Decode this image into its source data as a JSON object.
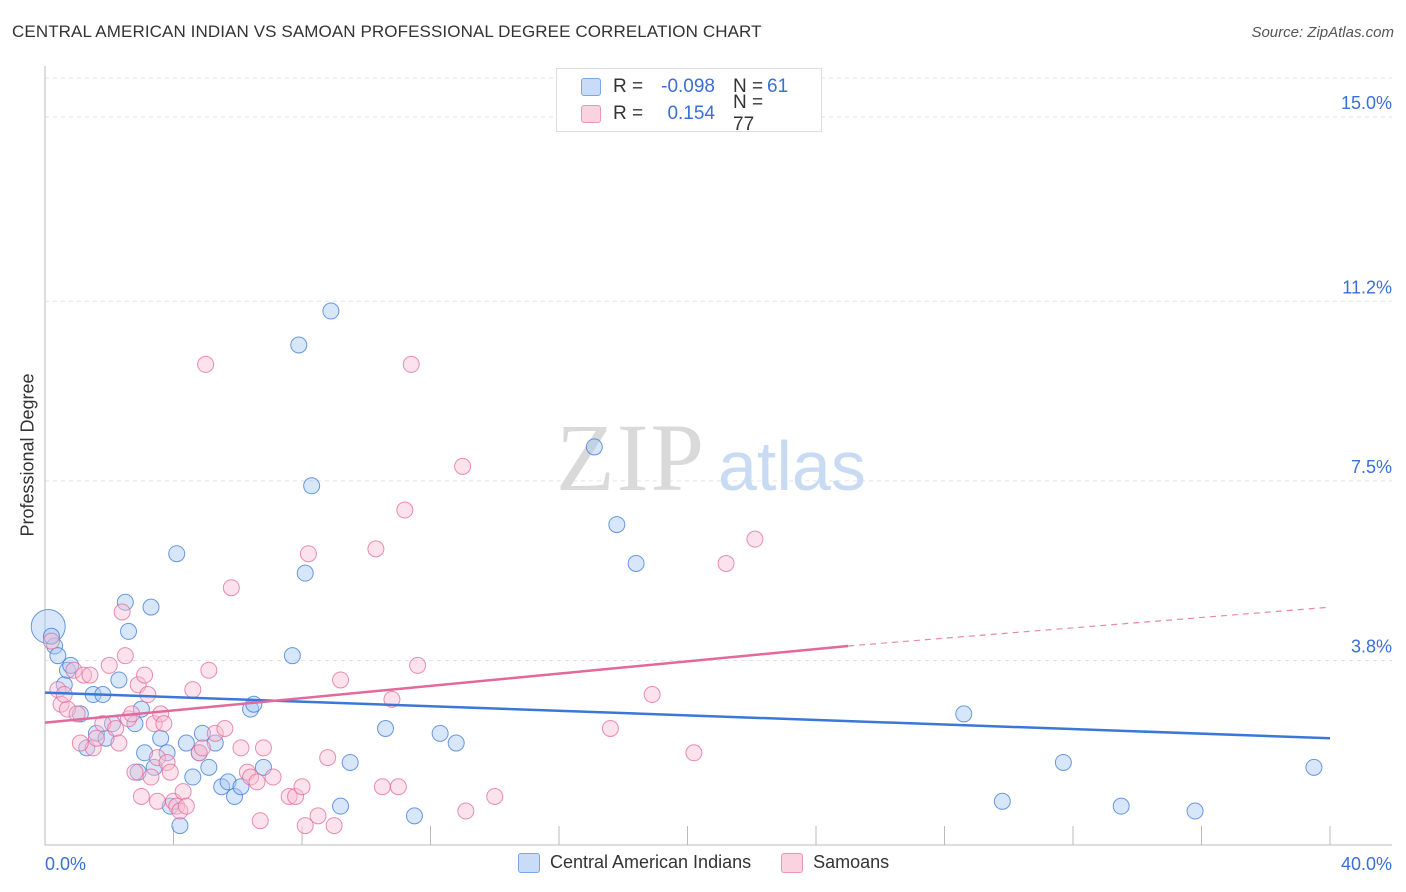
{
  "header": {
    "title": "CENTRAL AMERICAN INDIAN VS SAMOAN PROFESSIONAL DEGREE CORRELATION CHART",
    "source": "Source: ZipAtlas.com"
  },
  "watermark": {
    "zip": "ZIP",
    "atlas": "atlas"
  },
  "legend": {
    "rows": [
      {
        "r_label": "R =",
        "r_value": "-0.098",
        "n_label": "N =",
        "n_value": "61",
        "color": "#8ab4f0"
      },
      {
        "r_label": "R =",
        "r_value": "0.154",
        "n_label": "N = 77",
        "n_value": "",
        "color": "#f4a3bd"
      }
    ]
  },
  "bottom_legend": {
    "items": [
      {
        "label": "Central American Indians",
        "color": "#8ab4f0"
      },
      {
        "label": "Samoans",
        "color": "#f4a3bd"
      }
    ]
  },
  "chart_data": {
    "type": "scatter",
    "title": "CENTRAL AMERICAN INDIAN VS SAMOAN PROFESSIONAL DEGREE CORRELATION CHART",
    "xlabel": "",
    "ylabel": "Professional Degree",
    "xlim": [
      0,
      40
    ],
    "ylim": [
      0,
      15.8
    ],
    "x_tick_labels": [
      "0.0%",
      "40.0%"
    ],
    "y_ticks": [
      3.8,
      7.5,
      11.2,
      15.0
    ],
    "y_tick_labels": [
      "3.8%",
      "7.5%",
      "11.2%",
      "15.0%"
    ],
    "grid": true,
    "series": [
      {
        "name": "Central American Indians",
        "color": "#3a78d8",
        "fill": "#a9c8f3",
        "trend": {
          "x0": 0,
          "y0": 3.14,
          "x1": 40,
          "y1": 2.2
        },
        "points": [
          [
            0.1,
            4.5
          ],
          [
            0.3,
            4.1
          ],
          [
            0.4,
            3.9
          ],
          [
            0.6,
            3.3
          ],
          [
            0.7,
            3.6
          ],
          [
            0.8,
            3.7
          ],
          [
            1.1,
            2.7
          ],
          [
            1.3,
            2.0
          ],
          [
            1.5,
            3.1
          ],
          [
            1.6,
            2.3
          ],
          [
            1.8,
            3.1
          ],
          [
            1.9,
            2.2
          ],
          [
            2.1,
            2.5
          ],
          [
            2.3,
            3.4
          ],
          [
            2.5,
            5.0
          ],
          [
            2.6,
            4.4
          ],
          [
            2.8,
            2.5
          ],
          [
            3.0,
            2.8
          ],
          [
            3.1,
            1.9
          ],
          [
            3.3,
            4.9
          ],
          [
            3.4,
            1.6
          ],
          [
            3.6,
            2.2
          ],
          [
            3.8,
            1.9
          ],
          [
            3.9,
            0.8
          ],
          [
            4.1,
            6.0
          ],
          [
            4.2,
            0.4
          ],
          [
            4.4,
            2.1
          ],
          [
            4.6,
            1.4
          ],
          [
            4.8,
            1.9
          ],
          [
            4.9,
            2.3
          ],
          [
            5.1,
            1.6
          ],
          [
            5.3,
            2.1
          ],
          [
            5.5,
            1.2
          ],
          [
            5.7,
            1.3
          ],
          [
            5.9,
            1.0
          ],
          [
            6.1,
            1.2
          ],
          [
            6.4,
            2.8
          ],
          [
            6.5,
            2.9
          ],
          [
            6.8,
            1.6
          ],
          [
            7.7,
            3.9
          ],
          [
            7.9,
            10.3
          ],
          [
            8.1,
            5.6
          ],
          [
            8.3,
            7.4
          ],
          [
            8.9,
            11.0
          ],
          [
            9.2,
            0.8
          ],
          [
            9.5,
            1.7
          ],
          [
            10.6,
            2.4
          ],
          [
            11.5,
            0.6
          ],
          [
            12.3,
            2.3
          ],
          [
            12.8,
            2.1
          ],
          [
            17.1,
            8.2
          ],
          [
            17.8,
            6.6
          ],
          [
            18.4,
            5.8
          ],
          [
            28.6,
            2.7
          ],
          [
            29.8,
            0.9
          ],
          [
            31.7,
            1.7
          ],
          [
            33.5,
            0.8
          ],
          [
            35.8,
            0.7
          ],
          [
            39.5,
            1.6
          ],
          [
            0.2,
            4.3
          ],
          [
            2.9,
            1.5
          ]
        ]
      },
      {
        "name": "Samoans",
        "color": "#e2699a",
        "fill": "#f7bfd2",
        "trend": {
          "x0": 0,
          "y0": 2.52,
          "x1": 25,
          "y1": 4.1
        },
        "trend_dashed_to": {
          "x": 40,
          "y": 4.9
        },
        "points": [
          [
            0.2,
            4.2
          ],
          [
            0.4,
            3.2
          ],
          [
            0.5,
            2.9
          ],
          [
            0.7,
            2.8
          ],
          [
            0.9,
            3.6
          ],
          [
            1.0,
            2.7
          ],
          [
            1.2,
            3.5
          ],
          [
            1.4,
            3.5
          ],
          [
            1.5,
            2.0
          ],
          [
            1.6,
            2.2
          ],
          [
            1.8,
            2.5
          ],
          [
            2.0,
            3.7
          ],
          [
            2.2,
            2.4
          ],
          [
            2.3,
            2.1
          ],
          [
            2.4,
            4.8
          ],
          [
            2.5,
            3.9
          ],
          [
            2.6,
            2.6
          ],
          [
            2.7,
            2.7
          ],
          [
            2.8,
            1.5
          ],
          [
            2.9,
            3.3
          ],
          [
            3.0,
            1.0
          ],
          [
            3.1,
            3.5
          ],
          [
            3.2,
            3.1
          ],
          [
            3.3,
            1.4
          ],
          [
            3.4,
            2.5
          ],
          [
            3.5,
            1.8
          ],
          [
            3.6,
            2.7
          ],
          [
            3.7,
            2.5
          ],
          [
            3.8,
            1.7
          ],
          [
            3.9,
            1.5
          ],
          [
            4.0,
            0.9
          ],
          [
            4.1,
            0.8
          ],
          [
            4.2,
            0.7
          ],
          [
            4.3,
            1.1
          ],
          [
            4.4,
            0.8
          ],
          [
            4.6,
            3.2
          ],
          [
            4.8,
            1.9
          ],
          [
            5.0,
            9.9
          ],
          [
            5.1,
            3.6
          ],
          [
            5.3,
            2.3
          ],
          [
            5.6,
            2.4
          ],
          [
            5.8,
            5.3
          ],
          [
            6.1,
            2.0
          ],
          [
            6.3,
            1.5
          ],
          [
            6.4,
            1.4
          ],
          [
            6.6,
            1.3
          ],
          [
            6.8,
            2.0
          ],
          [
            7.1,
            1.4
          ],
          [
            7.6,
            1.0
          ],
          [
            7.8,
            1.0
          ],
          [
            8.0,
            1.2
          ],
          [
            8.1,
            0.4
          ],
          [
            8.2,
            6.0
          ],
          [
            8.5,
            0.6
          ],
          [
            8.8,
            1.8
          ],
          [
            9.0,
            0.4
          ],
          [
            9.2,
            3.4
          ],
          [
            10.3,
            6.1
          ],
          [
            10.5,
            1.2
          ],
          [
            10.8,
            3.0
          ],
          [
            11.0,
            1.2
          ],
          [
            11.2,
            6.9
          ],
          [
            11.4,
            9.9
          ],
          [
            11.6,
            3.7
          ],
          [
            13.0,
            7.8
          ],
          [
            13.1,
            0.7
          ],
          [
            14.0,
            1.0
          ],
          [
            17.6,
            2.4
          ],
          [
            18.9,
            3.1
          ],
          [
            20.2,
            1.9
          ],
          [
            21.2,
            5.8
          ],
          [
            22.1,
            6.3
          ],
          [
            1.1,
            2.1
          ],
          [
            3.5,
            0.9
          ],
          [
            6.7,
            0.5
          ],
          [
            0.6,
            3.1
          ],
          [
            4.9,
            2.0
          ]
        ]
      }
    ]
  }
}
